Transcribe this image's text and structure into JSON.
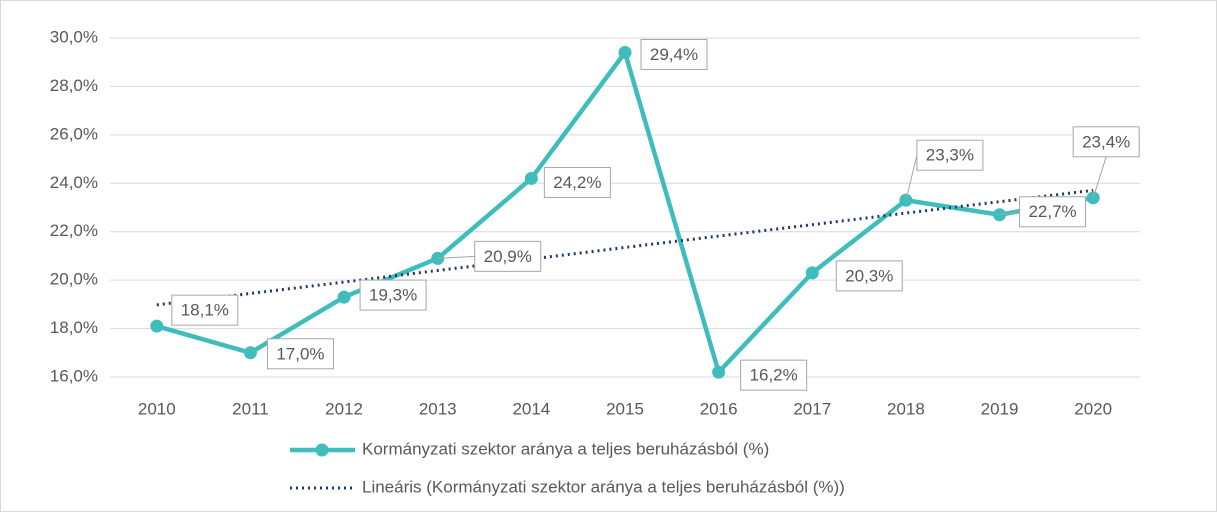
{
  "chart_data": {
    "type": "line",
    "categories": [
      "2010",
      "2011",
      "2012",
      "2013",
      "2014",
      "2015",
      "2016",
      "2017",
      "2018",
      "2019",
      "2020"
    ],
    "series": [
      {
        "name": "Kormányzati szektor aránya a teljes beruházásból (%)",
        "color": "#3fbdbd",
        "values": [
          18.1,
          17.0,
          19.3,
          20.9,
          24.2,
          29.4,
          16.2,
          20.3,
          23.3,
          22.7,
          23.4
        ],
        "value_labels": [
          "18,1%",
          "17,0%",
          "19,3%",
          "20,9%",
          "24,2%",
          "29,4%",
          "16,2%",
          "20,3%",
          "23,3%",
          "22,7%",
          "23,4%"
        ],
        "markers": true
      },
      {
        "name": "Lineáris (Kormányzati szektor aránya a teljes beruházásból (%))",
        "color": "#1f3864",
        "values": [
          18.98,
          19.45,
          19.92,
          20.4,
          20.87,
          21.35,
          21.82,
          22.29,
          22.77,
          23.24,
          23.71
        ],
        "dash": "dotted"
      }
    ],
    "ylim": [
      16,
      30
    ],
    "yticks": [
      {
        "value": 16,
        "label": "16,0%"
      },
      {
        "value": 18,
        "label": "18,0%"
      },
      {
        "value": 20,
        "label": "20,0%"
      },
      {
        "value": 22,
        "label": "22,0%"
      },
      {
        "value": 24,
        "label": "24,0%"
      },
      {
        "value": 26,
        "label": "26,0%"
      },
      {
        "value": 28,
        "label": "28,0%"
      },
      {
        "value": 30,
        "label": "30,0%"
      }
    ],
    "grid": true,
    "legend": "bottom"
  }
}
